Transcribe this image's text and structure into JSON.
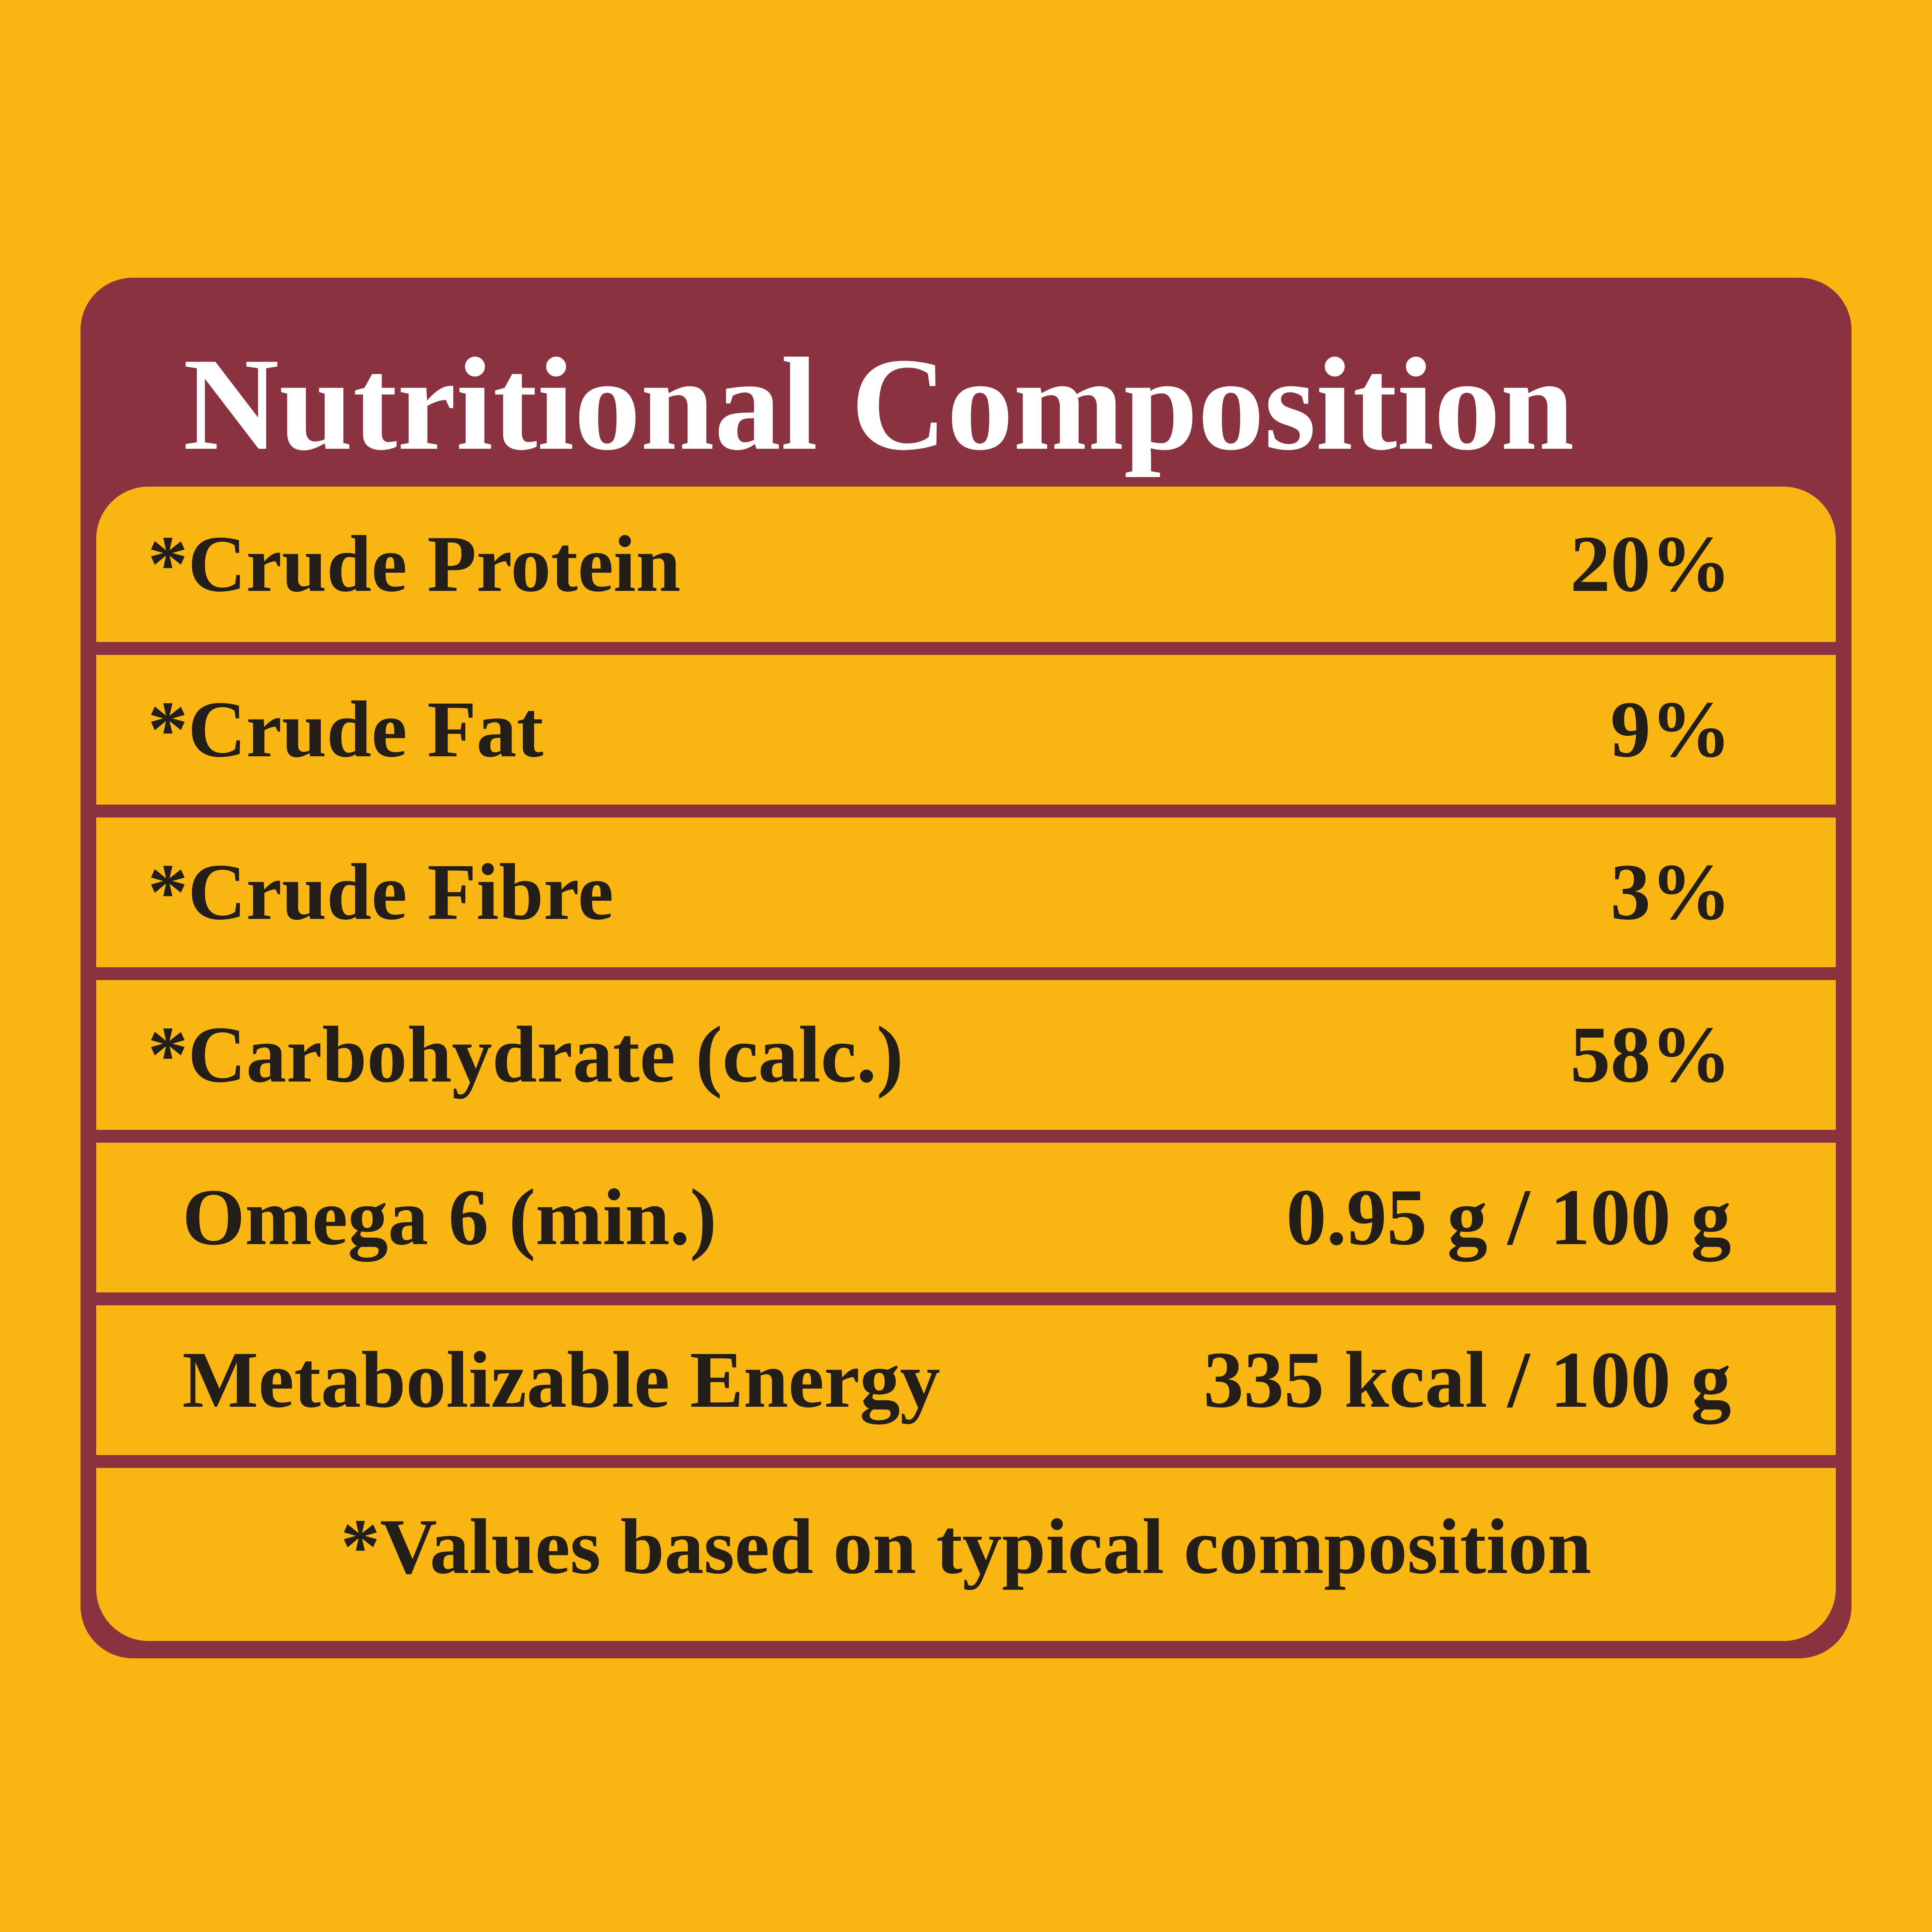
{
  "title": "Nutritional Composition",
  "rows": [
    {
      "label": "*Crude Protein",
      "value": "20%"
    },
    {
      "label": "*Crude Fat",
      "value": "9%"
    },
    {
      "label": "*Crude Fibre",
      "value": "3%"
    },
    {
      "label": "*Carbohydrate (calc.)",
      "value": "58%"
    },
    {
      "label": "Omega 6 (min.)",
      "value": "0.95 g / 100 g"
    },
    {
      "label": "Metabolizable Energy",
      "value": "335 kcal / 100 g"
    }
  ],
  "footnote": "*Values based on typical composition",
  "colors": {
    "background": "#F9B612",
    "panel": "#8B3240",
    "text": "#231F18",
    "title": "#FFFFFF"
  }
}
